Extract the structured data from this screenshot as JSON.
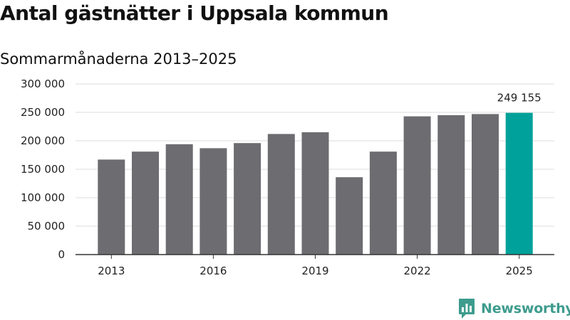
{
  "header": {
    "title": "Antal gästnätter i Uppsala kommun",
    "subtitle": "Sommarmånaderna 2013–2025"
  },
  "brand": {
    "name": "Newsworthy",
    "icon": "newsworthy-logo-icon",
    "color": "#3e9c8e"
  },
  "colors": {
    "bar": "#6d6c71",
    "highlight": "#00a19a",
    "grid": "#dddddd",
    "axis": "#333333"
  },
  "chart_data": {
    "type": "bar",
    "title": "Antal gästnätter i Uppsala kommun",
    "subtitle": "Sommarmånaderna 2013–2025",
    "xlabel": "",
    "ylabel": "",
    "categories": [
      "2013",
      "2014",
      "2015",
      "2016",
      "2017",
      "2018",
      "2019",
      "2020",
      "2021",
      "2022",
      "2023",
      "2024",
      "2025"
    ],
    "x_tick_labels": [
      "2013",
      "2016",
      "2019",
      "2022",
      "2025"
    ],
    "values": [
      167000,
      181000,
      194000,
      187000,
      196000,
      212000,
      215000,
      136000,
      181000,
      243000,
      245000,
      247000,
      249155
    ],
    "highlight_index": 12,
    "data_labels": [
      {
        "category": "2025",
        "text": "249 155"
      }
    ],
    "ylim": [
      0,
      300000
    ],
    "y_ticks": [
      0,
      50000,
      100000,
      150000,
      200000,
      250000,
      300000
    ],
    "y_tick_labels": [
      "0",
      "50 000",
      "100 000",
      "150 000",
      "200 000",
      "250 000",
      "300 000"
    ],
    "grid": true,
    "legend": "none"
  }
}
